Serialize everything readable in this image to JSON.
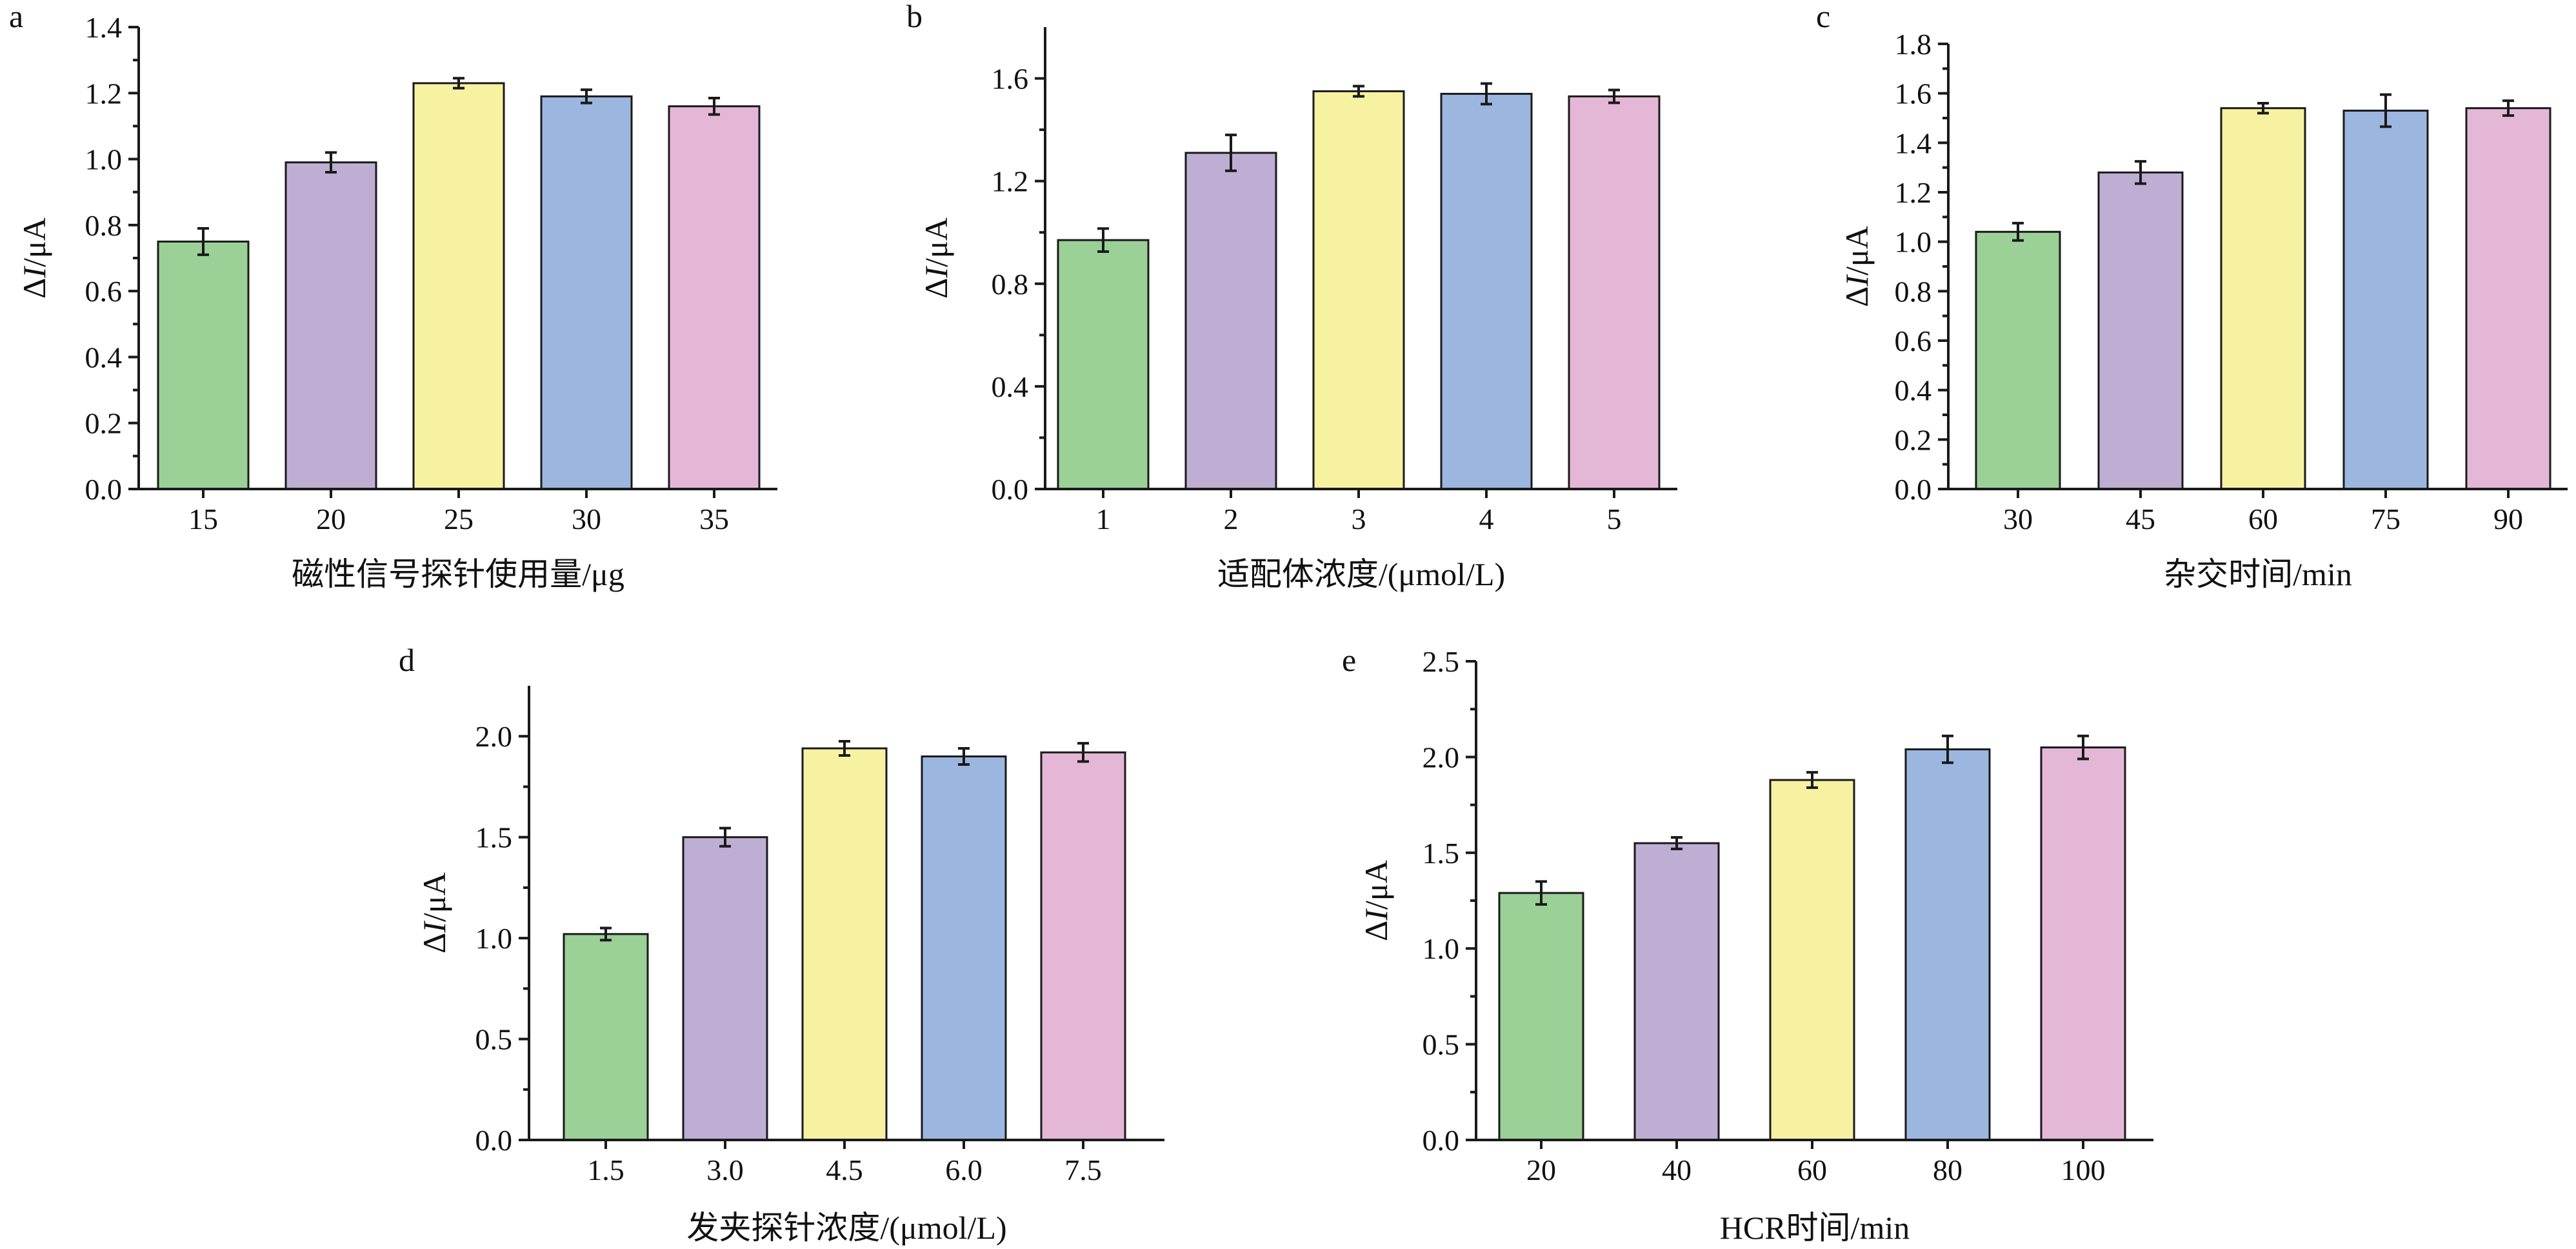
{
  "figure": {
    "bar_colors": [
      "#9bd097",
      "#bfaed4",
      "#f6f2a1",
      "#9cb7df",
      "#e5b7d6"
    ]
  },
  "chart_data": [
    {
      "panel": "a",
      "type": "bar",
      "categories": [
        "15",
        "20",
        "25",
        "30",
        "35"
      ],
      "values": [
        0.75,
        0.99,
        1.23,
        1.19,
        1.16
      ],
      "errors": [
        0.04,
        0.03,
        0.015,
        0.02,
        0.025
      ],
      "ylim": [
        0,
        1.4
      ],
      "yticks": [
        0.0,
        0.2,
        0.4,
        0.6,
        0.8,
        1.0,
        1.2,
        1.4
      ],
      "ytick_labels": [
        "0.0",
        "0.2",
        "0.4",
        "0.6",
        "0.8",
        "1.0",
        "1.2",
        "1.4"
      ],
      "ylabel_prefix": "Δ",
      "ylabel_var": "I",
      "ylabel_suffix": "/μA",
      "xlabel": "磁性信号探针使用量/μg"
    },
    {
      "panel": "b",
      "type": "bar",
      "categories": [
        "1",
        "2",
        "3",
        "4",
        "5"
      ],
      "values": [
        0.97,
        1.31,
        1.55,
        1.54,
        1.53
      ],
      "errors": [
        0.045,
        0.07,
        0.02,
        0.04,
        0.025
      ],
      "ylim": [
        0,
        1.8
      ],
      "yticks": [
        0.0,
        0.4,
        0.8,
        1.2,
        1.6
      ],
      "ytick_labels": [
        "0.0",
        "0.4",
        "0.8",
        "1.2",
        "1.6"
      ],
      "ylabel_prefix": "Δ",
      "ylabel_var": "I",
      "ylabel_suffix": "/μA",
      "xlabel": "适配体浓度/(μmol/L)"
    },
    {
      "panel": "c",
      "type": "bar",
      "categories": [
        "30",
        "45",
        "60",
        "75",
        "90"
      ],
      "values": [
        1.04,
        1.28,
        1.54,
        1.53,
        1.54
      ],
      "errors": [
        0.035,
        0.045,
        0.02,
        0.065,
        0.03
      ],
      "ylim": [
        0,
        1.8
      ],
      "yticks": [
        0.0,
        0.2,
        0.4,
        0.6,
        0.8,
        1.0,
        1.2,
        1.4,
        1.6,
        1.8
      ],
      "ytick_labels": [
        "0.0",
        "0.2",
        "0.4",
        "0.6",
        "0.8",
        "1.0",
        "1.2",
        "1.4",
        "1.6",
        "1.8"
      ],
      "ylabel_prefix": "Δ",
      "ylabel_var": "I",
      "ylabel_suffix": "/μA",
      "xlabel": "杂交时间/min"
    },
    {
      "panel": "d",
      "type": "bar",
      "categories": [
        "1.5",
        "3.0",
        "4.5",
        "6.0",
        "7.5"
      ],
      "values": [
        1.02,
        1.5,
        1.94,
        1.9,
        1.92
      ],
      "errors": [
        0.03,
        0.045,
        0.035,
        0.04,
        0.045
      ],
      "ylim": [
        0,
        2.25
      ],
      "yticks": [
        0.0,
        0.5,
        1.0,
        1.5,
        2.0
      ],
      "ytick_labels": [
        "0.0",
        "0.5",
        "1.0",
        "1.5",
        "2.0"
      ],
      "ylabel_prefix": "Δ",
      "ylabel_var": "I",
      "ylabel_suffix": "/μA",
      "xlabel": "发夹探针浓度/(μmol/L)"
    },
    {
      "panel": "e",
      "type": "bar",
      "categories": [
        "20",
        "40",
        "60",
        "80",
        "100"
      ],
      "values": [
        1.29,
        1.55,
        1.88,
        2.04,
        2.05
      ],
      "errors": [
        0.06,
        0.03,
        0.04,
        0.07,
        0.06
      ],
      "ylim": [
        0,
        2.5
      ],
      "yticks": [
        0.0,
        0.5,
        1.0,
        1.5,
        2.0,
        2.5
      ],
      "ytick_labels": [
        "0.0",
        "0.5",
        "1.0",
        "1.5",
        "2.0",
        "2.5"
      ],
      "ylabel_prefix": "Δ",
      "ylabel_var": "I",
      "ylabel_suffix": "/μA",
      "xlabel": "HCR时间/min"
    }
  ]
}
